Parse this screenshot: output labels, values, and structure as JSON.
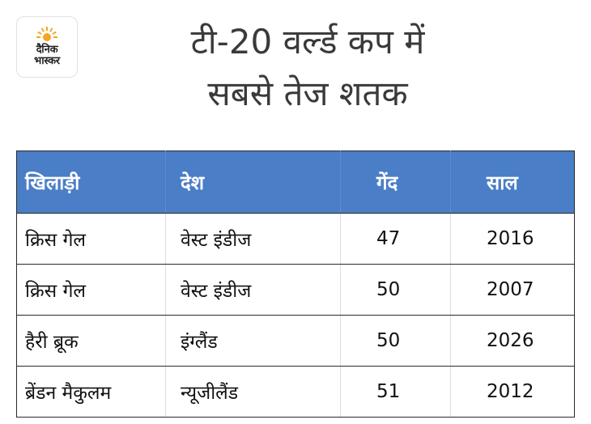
{
  "logo": {
    "line1": "दैनिक",
    "line2": "भास्कर",
    "sun_color": "#f5a623"
  },
  "title": {
    "line1": "टी-20 वर्ल्ड कप में",
    "line2": "सबसे तेज शतक"
  },
  "colors": {
    "header_bg": "#4a7ec6",
    "header_text": "#ffffff",
    "title_text": "#3a3a3a"
  },
  "chart_data": {
    "type": "table",
    "columns": [
      "खिलाड़ी",
      "देश",
      "गेंद",
      "साल"
    ],
    "rows": [
      [
        "क्रिस गेल",
        "वेस्ट इंडीज",
        "47",
        "2016"
      ],
      [
        "क्रिस गेल",
        "वेस्ट इंडीज",
        "50",
        "2007"
      ],
      [
        "हैरी ब्रूक",
        "इंग्लैंड",
        "50",
        "2026"
      ],
      [
        "ब्रेंडन मैकुलम",
        "न्यूजीलैंड",
        "51",
        "2012"
      ]
    ]
  }
}
